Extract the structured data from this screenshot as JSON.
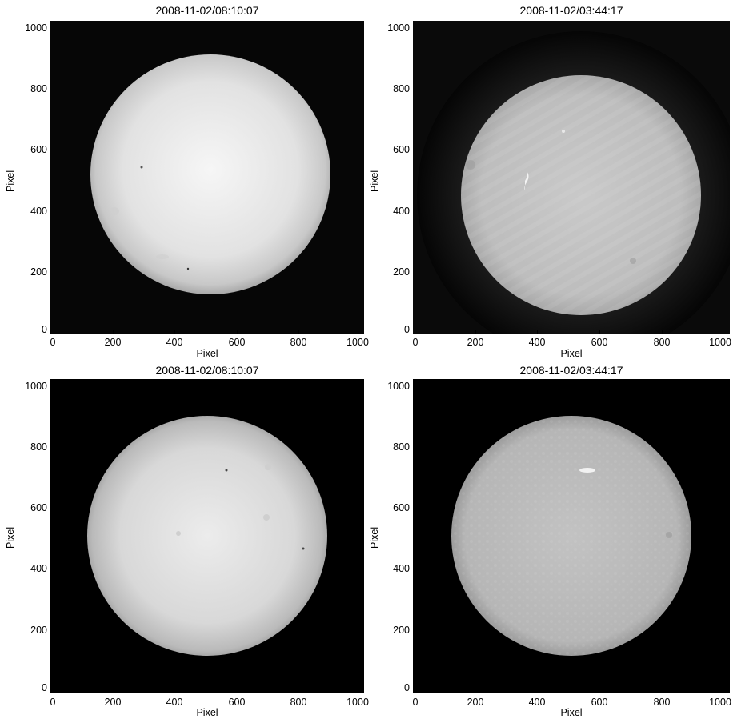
{
  "panels": [
    {
      "title": "2008-11-02/08:10:07",
      "xlabel": "Pixel",
      "ylabel": "Pixel",
      "xticks": [
        "0",
        "200",
        "400",
        "600",
        "800",
        "1000"
      ],
      "yticks": [
        "0",
        "200",
        "400",
        "600",
        "800",
        "1000"
      ],
      "image": "white-light solar disk, smooth limb darkening, few small dark spots"
    },
    {
      "title": "2008-11-02/03:44:17",
      "xlabel": "Pixel",
      "ylabel": "Pixel",
      "xticks": [
        "0",
        "200",
        "400",
        "600",
        "800",
        "1000"
      ],
      "yticks": [
        "0",
        "200",
        "400",
        "600",
        "800",
        "1000"
      ],
      "image": "chromospheric solar disk with diagonal striping artifacts and bright plage near upper-left"
    },
    {
      "title": "2008-11-02/08:10:07",
      "xlabel": "Pixel",
      "ylabel": "Pixel",
      "xticks": [
        "0",
        "200",
        "400",
        "600",
        "800",
        "1000"
      ],
      "yticks": [
        "0",
        "200",
        "400",
        "600",
        "800",
        "1000"
      ],
      "image": "white-light solar disk, corrected, centered"
    },
    {
      "title": "2008-11-02/03:44:17",
      "xlabel": "Pixel",
      "ylabel": "Pixel",
      "xticks": [
        "0",
        "200",
        "400",
        "600",
        "800",
        "1000"
      ],
      "yticks": [
        "0",
        "200",
        "400",
        "600",
        "800",
        "1000"
      ],
      "image": "chromospheric solar disk, corrected, mottled texture with bright plage upper-right"
    }
  ],
  "colors": {
    "background": "#000000",
    "disk_light": "#e6e6e6",
    "disk_gray": "#b4b4b4"
  }
}
